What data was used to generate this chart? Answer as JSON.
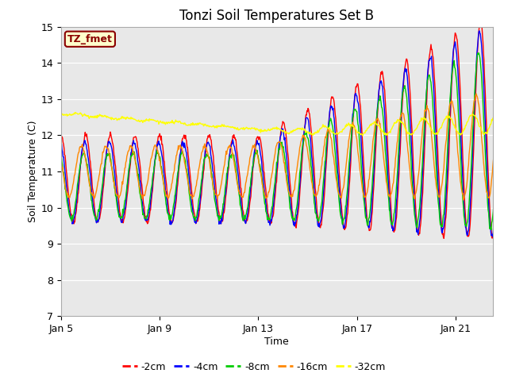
{
  "title": "Tonzi Soil Temperatures Set B",
  "xlabel": "Time",
  "ylabel": "Soil Temperature (C)",
  "ylim": [
    7.0,
    15.0
  ],
  "yticks": [
    7.0,
    8.0,
    9.0,
    10.0,
    11.0,
    12.0,
    13.0,
    14.0,
    15.0
  ],
  "xtick_positions": [
    0,
    4,
    8,
    12,
    16
  ],
  "xtick_labels": [
    "Jan 5",
    "Jan 9",
    "Jan 13",
    "Jan 17",
    "Jan 21"
  ],
  "legend_label": "TZ_fmet",
  "legend_bg": "#ffffcc",
  "legend_edge": "#8b0000",
  "line_colors": [
    "#ff0000",
    "#0000ff",
    "#00cc00",
    "#ff8800",
    "#ffff00"
  ],
  "line_labels": [
    "-2cm",
    "-4cm",
    "-8cm",
    "-16cm",
    "-32cm"
  ],
  "bg_color": "#e8e8e8",
  "num_points": 864,
  "days": 18,
  "xlim": [
    0,
    17.5
  ]
}
